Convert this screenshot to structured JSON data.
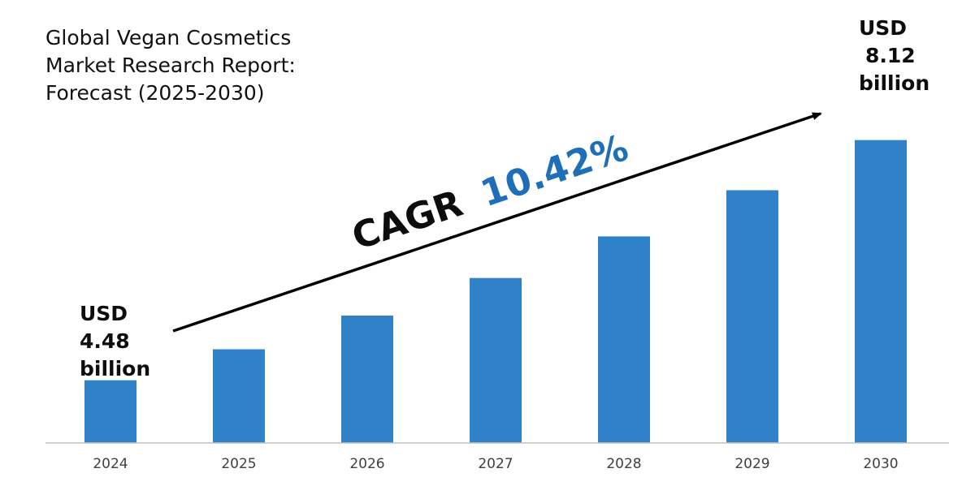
{
  "title_lines": [
    "Global Vegan Cosmetics",
    "Market Research Report:",
    "Forecast (2025-2030)"
  ],
  "callouts": {
    "start": {
      "currency": "USD",
      "value": "4.48",
      "unit": "billion"
    },
    "end": {
      "currency": "USD",
      "value": "8.12",
      "unit": "billion"
    }
  },
  "cagr": {
    "label": "CAGR",
    "value": "10.42%"
  },
  "colors": {
    "bar": "#2f82c7",
    "cagr_value": "#1f6fb8",
    "axis": "#bfbfbf",
    "arrow": "#000000",
    "tick_text": "#404040"
  },
  "chart_data": {
    "type": "bar",
    "title": "Global Vegan Cosmetics Market Research Report: Forecast (2025-2030)",
    "categories": [
      "2024",
      "2025",
      "2026",
      "2027",
      "2028",
      "2029",
      "2030"
    ],
    "values": [
      4.48,
      4.95,
      5.46,
      6.03,
      6.66,
      7.36,
      8.12
    ],
    "ylabel": "USD billion",
    "xlabel": "",
    "ylim": [
      3.53,
      8.62
    ],
    "grid": false,
    "legend": "none"
  }
}
